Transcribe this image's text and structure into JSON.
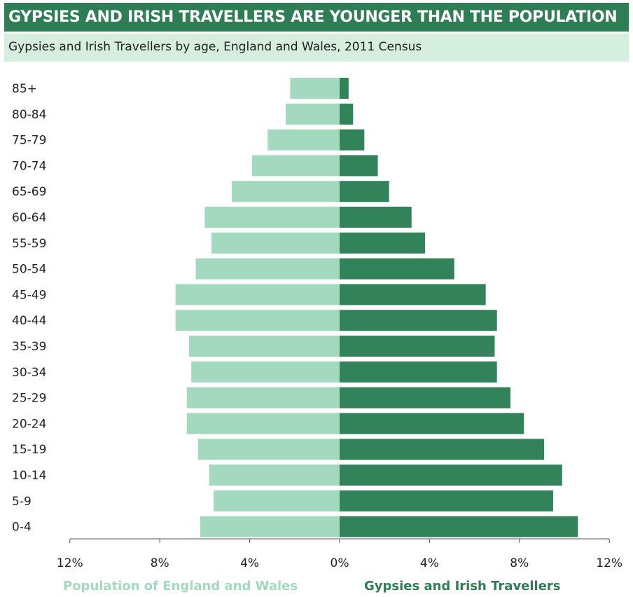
{
  "header": {
    "title": "GYPSIES AND IRISH TRAVELLERS ARE YOUNGER THAN THE POPULATION",
    "subtitle": "Gypsies and Irish Travellers by age, England and Wales, 2011 Census"
  },
  "colors": {
    "population": "#a3d9be",
    "travellers": "#33835a",
    "title_bg": "#2e7d54",
    "subtitle_bg": "#d6eede",
    "axis": "#555555"
  },
  "chart_data": {
    "type": "bar",
    "orientation": "horizontal-population-pyramid",
    "title": "GYPSIES AND IRISH TRAVELLERS ARE YOUNGER THAN THE POPULATION",
    "subtitle": "Gypsies and Irish Travellers by age, England and Wales, 2011 Census",
    "categories": [
      "85+",
      "80-84",
      "75-79",
      "70-74",
      "65-69",
      "60-64",
      "55-59",
      "50-54",
      "45-49",
      "40-44",
      "35-39",
      "30-34",
      "25-29",
      "20-24",
      "15-19",
      "10-14",
      "5-9",
      "0-4"
    ],
    "series": [
      {
        "name": "Population of England and Wales",
        "side": "left",
        "values": [
          2.2,
          2.4,
          3.2,
          3.9,
          4.8,
          6.0,
          5.7,
          6.4,
          7.3,
          7.3,
          6.7,
          6.6,
          6.8,
          6.8,
          6.3,
          5.8,
          5.6,
          6.2
        ]
      },
      {
        "name": "Gypsies and Irish Travellers",
        "side": "right",
        "values": [
          0.4,
          0.6,
          1.1,
          1.7,
          2.2,
          3.2,
          3.8,
          5.1,
          6.5,
          7.0,
          6.9,
          7.0,
          7.6,
          8.2,
          9.1,
          9.9,
          9.5,
          10.6
        ]
      }
    ],
    "xlim": [
      -12,
      12
    ],
    "xticks": [
      "12%",
      "8%",
      "4%",
      "0%",
      "4%",
      "8%",
      "12%"
    ],
    "xlabel": "",
    "ylabel": "",
    "grid": false,
    "legend": "bottom"
  }
}
